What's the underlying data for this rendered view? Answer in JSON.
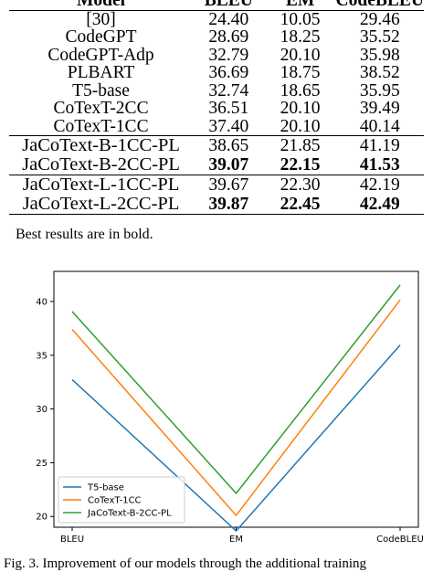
{
  "table": {
    "headers": [
      "Model",
      "BLEU",
      "EM",
      "CodeBLEU"
    ],
    "rows": [
      {
        "model": "[30]",
        "bleu": "24.40",
        "em": "10.05",
        "codebleu": "29.46",
        "bold": false
      },
      {
        "model": "CodeGPT",
        "bleu": "28.69",
        "em": "18.25",
        "codebleu": "35.52",
        "bold": false
      },
      {
        "model": "CodeGPT-Adp",
        "bleu": "32.79",
        "em": "20.10",
        "codebleu": "35.98",
        "bold": false
      },
      {
        "model": "PLBART",
        "bleu": "36.69",
        "em": "18.75",
        "codebleu": "38.52",
        "bold": false
      },
      {
        "model": "T5-base",
        "bleu": "32.74",
        "em": "18.65",
        "codebleu": "35.95",
        "bold": false
      },
      {
        "model": "CoTexT-2CC",
        "bleu": "36.51",
        "em": "20.10",
        "codebleu": "39.49",
        "bold": false
      },
      {
        "model": "CoTexT-1CC",
        "bleu": "37.40",
        "em": "20.10",
        "codebleu": "40.14",
        "bold": false
      },
      {
        "model": "JaCoText-B-1CC-PL",
        "bleu": "38.65",
        "em": "21.85",
        "codebleu": "41.19",
        "bold": false
      },
      {
        "model": "JaCoText-B-2CC-PL",
        "bleu": "39.07",
        "em": "22.15",
        "codebleu": "41.53",
        "bold": true
      },
      {
        "model": "JaCoText-L-1CC-PL",
        "bleu": "39.67",
        "em": "22.30",
        "codebleu": "42.19",
        "bold": false
      },
      {
        "model": "JaCoText-L-2CC-PL",
        "bleu": "39.87",
        "em": "22.45",
        "codebleu": "42.49",
        "bold": true
      }
    ]
  },
  "note": "Best results are in bold.",
  "chart_data": {
    "type": "line",
    "categories": [
      "BLEU",
      "EM",
      "CodeBLEU"
    ],
    "ylim": [
      19.0,
      42.8
    ],
    "yticks": [
      20,
      25,
      30,
      35,
      40
    ],
    "grid": false,
    "legend_position": "lower-left",
    "series": [
      {
        "name": "T5-base",
        "values": [
          32.74,
          18.65,
          35.95
        ],
        "color": "#1f77b4"
      },
      {
        "name": "CoTexT-1CC",
        "values": [
          37.4,
          20.1,
          40.14
        ],
        "color": "#ff7f0e"
      },
      {
        "name": "JaCoText-B-2CC-PL",
        "values": [
          39.07,
          22.15,
          41.53
        ],
        "color": "#2ca02c"
      }
    ]
  },
  "caption": "Fig. 3. Improvement of our models through the additional training"
}
